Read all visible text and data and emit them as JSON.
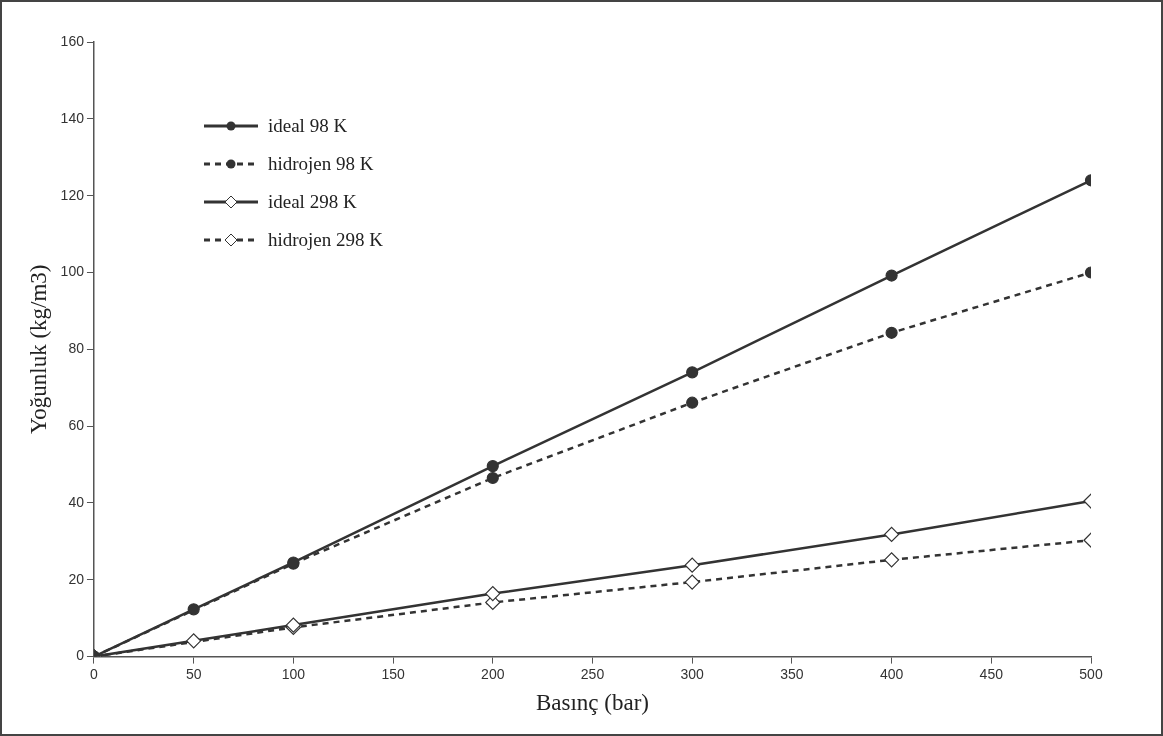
{
  "chart_data": {
    "type": "line",
    "xlabel": "Basınç (bar)",
    "ylabel": "Yoğunluk (kg/m3)",
    "x": [
      0,
      50,
      100,
      200,
      300,
      400,
      500
    ],
    "xlim": [
      0,
      500
    ],
    "xticks": [
      0,
      50,
      100,
      150,
      200,
      250,
      300,
      350,
      400,
      450,
      500
    ],
    "ylim": [
      0,
      160
    ],
    "yticks": [
      0,
      20,
      40,
      60,
      80,
      100,
      120,
      140,
      160
    ],
    "grid": false,
    "legend": "top left",
    "series": [
      {
        "name": "ideal 98 K",
        "color": "#333333",
        "marker": "circle",
        "line_style": "solid",
        "values": [
          0,
          12.3,
          24.5,
          49.6,
          74,
          99.2,
          124
        ]
      },
      {
        "name": "hidrojen 98 K",
        "color": "#333333",
        "marker": "circle",
        "line_style": "dashed",
        "values": [
          0,
          null,
          24.2,
          46.5,
          66.1,
          84.3,
          100
        ]
      },
      {
        "name": "ideal 298 K",
        "color": "#333333",
        "marker": "diamond",
        "line_style": "solid",
        "values": [
          0,
          4.1,
          8.2,
          16.4,
          23.8,
          31.8,
          40.5
        ]
      },
      {
        "name": "hidrojen 298 K",
        "color": "#333333",
        "marker": "diamond",
        "line_style": "dashed",
        "values": [
          0,
          null,
          7.6,
          14.1,
          19.4,
          25.2,
          30.3
        ]
      }
    ]
  }
}
